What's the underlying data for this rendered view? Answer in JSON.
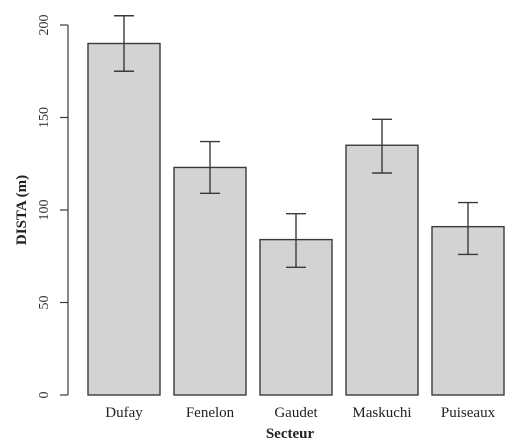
{
  "chart_data": {
    "type": "bar",
    "title": "",
    "xlabel": "Secteur",
    "ylabel": "DISTA (m)",
    "categories": [
      "Dufay",
      "Fenelon",
      "Gaudet",
      "Maskuchi",
      "Puiseaux"
    ],
    "values": [
      190,
      123,
      84,
      135,
      91
    ],
    "error_lower": [
      175,
      109,
      69,
      120,
      76
    ],
    "error_upper": [
      205,
      137,
      98,
      149,
      104
    ],
    "ylim": [
      0,
      200
    ],
    "yticks": [
      "0",
      "50",
      "100",
      "150",
      "200"
    ],
    "grid": false,
    "legend": "none",
    "colors": {
      "bar_fill": "#d3d3d3",
      "bar_stroke": "#3a3a3a"
    }
  }
}
